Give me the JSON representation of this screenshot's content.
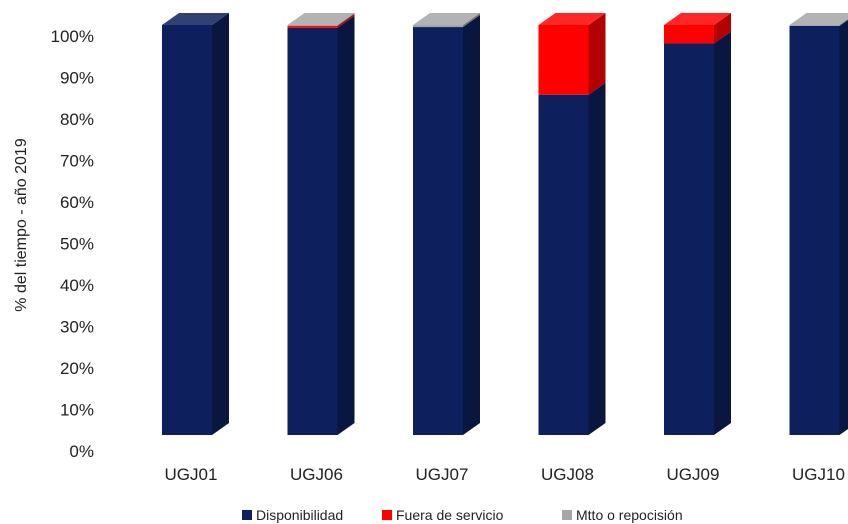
{
  "chart_data": {
    "type": "bar",
    "stacked": true,
    "three_d": true,
    "categories": [
      "UGJ01",
      "UGJ06",
      "UGJ07",
      "UGJ08",
      "UGJ09",
      "UGJ10"
    ],
    "series": [
      {
        "name": "Disponibilidad",
        "color": "#0d1f5c",
        "values": [
          100,
          99.3,
          99.5,
          83,
          95.5,
          99.8
        ]
      },
      {
        "name": "Fuera de servicio",
        "color": "#ff0000",
        "values": [
          0,
          0.5,
          0,
          17,
          4.5,
          0
        ]
      },
      {
        "name": "Mtto o repocisión",
        "color": "#a6a6a6",
        "values": [
          0,
          0.2,
          0.5,
          0,
          0,
          0.2
        ]
      }
    ],
    "ylabel": "% del tiempo - año 2019",
    "xlabel": "",
    "ylim": [
      0,
      100
    ],
    "yticks": [
      "0%",
      "10%",
      "20%",
      "30%",
      "40%",
      "50%",
      "60%",
      "70%",
      "80%",
      "90%",
      "100%"
    ],
    "grid": false,
    "legend_position": "bottom"
  }
}
